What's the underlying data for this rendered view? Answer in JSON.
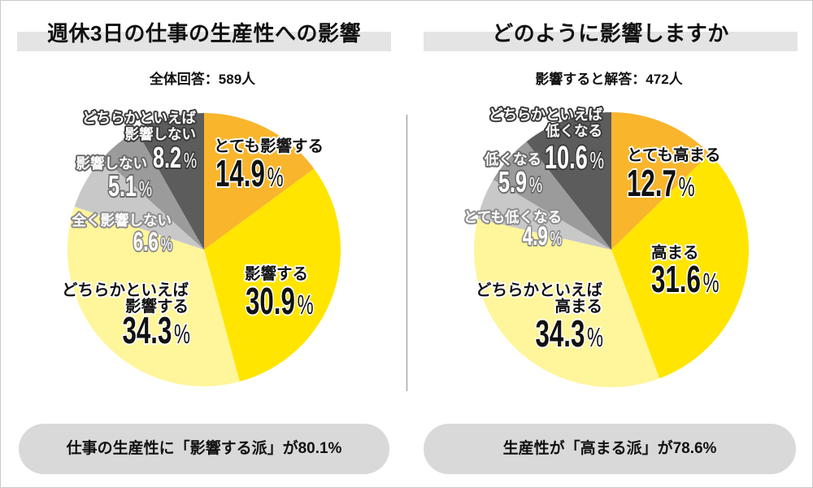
{
  "chart_data": [
    {
      "type": "pie",
      "title": "週休3日の仕事の生産性への影響",
      "subtitle": "全体回答：589人",
      "unit": "%",
      "slices": [
        {
          "label_lines": [
            "とても影響する"
          ],
          "value": 14.9,
          "color": "#F9B52C"
        },
        {
          "label_lines": [
            "影響する"
          ],
          "value": 30.9,
          "color": "#FFE500"
        },
        {
          "label_lines": [
            "どちらかといえば",
            "影響する"
          ],
          "value": 34.3,
          "color": "#FFF59A"
        },
        {
          "label_lines": [
            "全く影響しない"
          ],
          "value": 6.6,
          "color": "#C8C8C8"
        },
        {
          "label_lines": [
            "影響しない"
          ],
          "value": 5.1,
          "color": "#9B9B9B"
        },
        {
          "label_lines": [
            "どちらかといえば",
            "影響しない"
          ],
          "value": 8.2,
          "color": "#5C5C5C"
        }
      ],
      "annotation": "仕事の生産性に「影響する派」が80.1%"
    },
    {
      "type": "pie",
      "title": "どのように影響しますか",
      "subtitle": "影響すると解答：472人",
      "unit": "%",
      "slices": [
        {
          "label_lines": [
            "とても高まる"
          ],
          "value": 12.7,
          "color": "#F9B52C"
        },
        {
          "label_lines": [
            "高まる"
          ],
          "value": 31.6,
          "color": "#FFE500"
        },
        {
          "label_lines": [
            "どちらかといえば",
            "高まる"
          ],
          "value": 34.3,
          "color": "#FFF59A"
        },
        {
          "label_lines": [
            "とても低くなる"
          ],
          "value": 4.9,
          "color": "#C8C8C8"
        },
        {
          "label_lines": [
            "低くなる"
          ],
          "value": 5.9,
          "color": "#9B9B9B"
        },
        {
          "label_lines": [
            "どちらかといえば",
            "低くなる"
          ],
          "value": 10.6,
          "color": "#5C5C5C"
        }
      ],
      "annotation": "生産性が「高まる派」が78.6%"
    }
  ]
}
